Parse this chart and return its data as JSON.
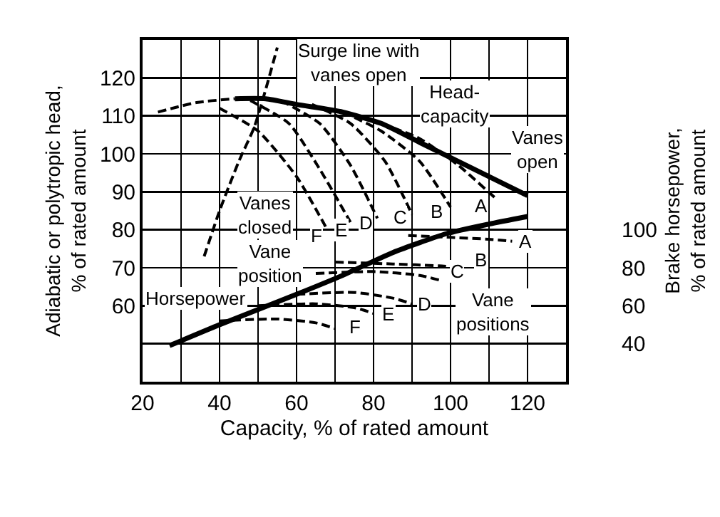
{
  "chart_data": {
    "type": "line",
    "xlabel": "Capacity, % of rated amount",
    "ylabel": "Adiabatic or polytropic head,\n% of rated amount",
    "y2label": "Brake horsepower,\n% of rated amount",
    "xlim": [
      20,
      130
    ],
    "xticks": [
      20,
      {
        "value": 30,
        "label": null
      },
      40,
      {
        "value": 50,
        "label": null
      },
      60,
      {
        "value": 70,
        "label": null
      },
      80,
      {
        "value": 90,
        "label": null
      },
      100,
      {
        "value": 110,
        "label": null
      },
      120
    ],
    "ylim": [
      40,
      130
    ],
    "yticks": [
      {
        "value": 50,
        "label": null
      },
      60,
      70,
      80,
      90,
      100,
      110,
      120
    ],
    "y2lim": [
      20,
      200
    ],
    "y2ticks": [
      40,
      60,
      80,
      100
    ],
    "grid": true,
    "marker": "none",
    "series": [
      {
        "color": "#000000",
        "line_style": "dashed",
        "x": [
          24,
          34,
          44
        ],
        "values": [
          111,
          113.5,
          114.5
        ]
      },
      {
        "color": "#000000",
        "line_style": "solid",
        "x": [
          44,
          52,
          60,
          72,
          82,
          92,
          105,
          120
        ],
        "values": [
          114.5,
          114.5,
          113,
          111,
          108,
          103,
          96.5,
          89
        ]
      },
      {
        "color": "#000000",
        "line_style": "dashed",
        "x": [
          36,
          40,
          45,
          49,
          52,
          55
        ],
        "values": [
          73,
          85,
          98,
          107,
          117,
          128
        ]
      },
      {
        "color": "#000000",
        "line_style": "dashed",
        "x": [
          40,
          50,
          60,
          68
        ],
        "values": [
          112,
          106,
          94,
          80
        ]
      },
      {
        "color": "#000000",
        "line_style": "dashed",
        "x": [
          48,
          58,
          66,
          74
        ],
        "values": [
          114,
          108,
          96,
          82
        ]
      },
      {
        "color": "#000000",
        "line_style": "dashed",
        "x": [
          56,
          66,
          74,
          81
        ],
        "values": [
          114,
          108,
          97,
          83
        ]
      },
      {
        "color": "#000000",
        "line_style": "dashed",
        "x": [
          64,
          74,
          83,
          90
        ],
        "values": [
          113,
          108,
          98,
          84
        ]
      },
      {
        "color": "#000000",
        "line_style": "dashed",
        "x": [
          72,
          82,
          92,
          100
        ],
        "values": [
          111,
          106,
          98,
          86
        ]
      },
      {
        "color": "#000000",
        "line_style": "dashed",
        "x": [
          82,
          92,
          102,
          112
        ],
        "values": [
          108,
          104,
          97,
          88
        ]
      },
      {
        "color": "#000000",
        "line_style": "solid",
        "axis": "y2",
        "x": [
          27,
          40,
          60,
          72,
          85,
          99,
          110,
          120
        ],
        "values": [
          39,
          50,
          66,
          76,
          88,
          98,
          103,
          107
        ]
      },
      {
        "color": "#000000",
        "line_style": "dashed",
        "axis": "y2",
        "x": [
          89,
          100,
          110,
          116
        ],
        "values": [
          97,
          96,
          95,
          94
        ]
      },
      {
        "color": "#000000",
        "line_style": "dashed",
        "axis": "y2",
        "x": [
          70,
          85,
          97,
          103
        ],
        "values": [
          83,
          82,
          81,
          80
        ]
      },
      {
        "color": "#000000",
        "line_style": "dashed",
        "axis": "y2",
        "x": [
          65,
          80,
          92,
          98
        ],
        "values": [
          77,
          78,
          76,
          73
        ]
      },
      {
        "color": "#000000",
        "line_style": "dashed",
        "axis": "y2",
        "x": [
          60,
          75,
          85,
          90
        ],
        "values": [
          66,
          67,
          64,
          61
        ]
      },
      {
        "color": "#000000",
        "line_style": "dashed",
        "axis": "y2",
        "x": [
          50,
          65,
          75,
          80
        ],
        "values": [
          60,
          61,
          59,
          56
        ]
      },
      {
        "color": "#000000",
        "line_style": "dashed",
        "axis": "y2",
        "x": [
          40,
          55,
          65,
          70
        ],
        "values": [
          52,
          53,
          51,
          48
        ]
      }
    ],
    "annotations": [
      "Surge line with\nvanes open",
      "Head-\ncapacity",
      "Vanes\nopen",
      "Vanes\nclosed",
      "Vane position",
      "F",
      "E",
      "D",
      "C",
      "B",
      "A",
      "A",
      "B",
      "C",
      "D",
      "E",
      "F",
      "Horsepower",
      "Vane\npositions"
    ]
  }
}
